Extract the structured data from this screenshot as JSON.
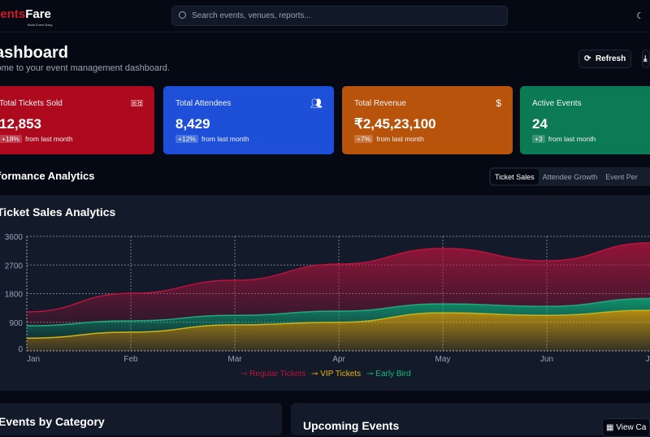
{
  "header": {
    "logo_part1": "vents",
    "logo_part2": "Fare",
    "logo_tagline": "Book Event Easy",
    "search_placeholder": "Search events, venues, reports...",
    "theme_icon": "moon-icon"
  },
  "page": {
    "title": "ashboard",
    "subtitle": "come to your event management dashboard.",
    "refresh_label": "Refresh"
  },
  "stats": [
    {
      "title": "Total Tickets Sold",
      "value": "12,853",
      "delta": "+18%",
      "note": "from last month",
      "icon": "ticket-icon",
      "color": "#ad0a1e"
    },
    {
      "title": "Total Attendees",
      "value": "8,429",
      "delta": "+12%",
      "note": "from last month",
      "icon": "users-icon",
      "color": "#1d4fd8"
    },
    {
      "title": "Total Revenue",
      "value": "₹2,45,23,100",
      "delta": "+7%",
      "note": "from last month",
      "icon": "dollar-icon",
      "color": "#b8530c"
    },
    {
      "title": "Active Events",
      "value": "24",
      "delta": "+3",
      "note": "from last month",
      "icon": "calendar-icon",
      "color": "#0b7a55"
    }
  ],
  "analytics": {
    "title": "rformance Analytics",
    "tabs": [
      "Ticket Sales",
      "Attendee Growth",
      "Event Per"
    ]
  },
  "chart_data": {
    "type": "area",
    "stacked": true,
    "title": "Ticket Sales Analytics",
    "categories": [
      "Jan",
      "Feb",
      "Mar",
      "Apr",
      "May",
      "Jun",
      "Jul"
    ],
    "ylim": [
      0,
      3600
    ],
    "yticks": [
      0,
      900,
      1800,
      2700,
      3600
    ],
    "series": [
      {
        "name": "VIP Tickets",
        "color": "#eab308",
        "values": [
          400,
          590,
          820,
          900,
          1200,
          1120,
          1280
        ]
      },
      {
        "name": "Early Bird",
        "color": "#10b981",
        "values": [
          390,
          355,
          300,
          350,
          280,
          280,
          370
        ]
      },
      {
        "name": "Regular Tickets",
        "color": "#be123c",
        "values": [
          435,
          865,
          1100,
          1480,
          1740,
          1430,
          1750
        ]
      }
    ],
    "legend_order": [
      "Regular Tickets",
      "VIP Tickets",
      "Early Bird"
    ],
    "grid": true,
    "legend": "bottom-center"
  },
  "bottom": {
    "left_title": "Events by Category",
    "right_title": "Upcoming Events",
    "view_calendar": "View Ca"
  }
}
